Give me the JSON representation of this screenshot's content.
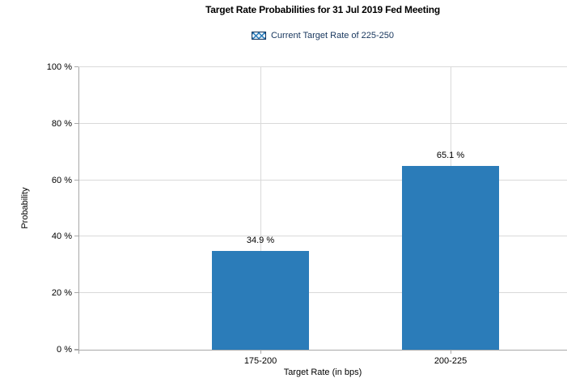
{
  "header": {
    "title": "Target Rate Probabilities for 31 Jul 2019 Fed Meeting"
  },
  "chart_data": {
    "type": "bar",
    "title": "Target Rate Probabilities for 31 Jul 2019 Fed Meeting",
    "categories": [
      "175-200",
      "200-225"
    ],
    "values": [
      34.9,
      65.1
    ],
    "value_labels": [
      "34.9 %",
      "65.1 %"
    ],
    "xlabel": "Target Rate (in bps)",
    "ylabel": "Probability",
    "ylim": [
      0,
      100
    ],
    "ytick_step": 20,
    "ytick_labels": [
      "0 %",
      "20 %",
      "40 %",
      "60 %",
      "80 %",
      "100 %"
    ],
    "grid": true,
    "legend": {
      "label": "Current Target Rate of 225-250",
      "position": "top-center"
    },
    "colors": {
      "bar": "#2b7cb9",
      "gridline": "#d9d9d9",
      "axis": "#a8a8a8",
      "text": "#000000",
      "legend_text": "#17365d",
      "legend_swatch_border": "#17365d",
      "legend_swatch_pattern": "#2b7cb9"
    }
  }
}
